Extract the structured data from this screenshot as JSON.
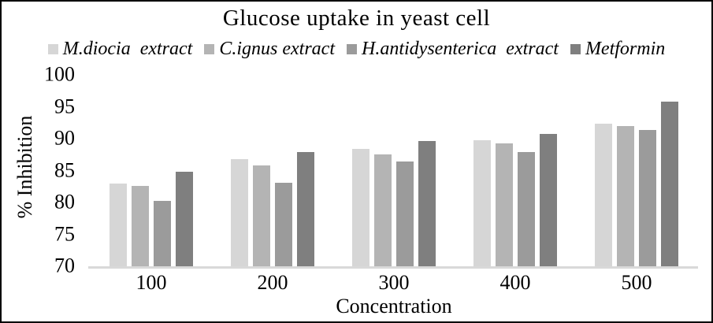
{
  "chart_data": {
    "type": "bar",
    "title": "Glucose uptake in yeast cell",
    "xlabel": "Concentration",
    "ylabel": "% Inhibition",
    "categories": [
      "100",
      "200",
      "300",
      "400",
      "500"
    ],
    "series": [
      {
        "name": "M.diocia  extract",
        "color": "#d6d6d6",
        "values": [
          83.0,
          86.8,
          88.4,
          89.8,
          92.4
        ]
      },
      {
        "name": "C.ignus extract",
        "color": "#b4b4b4",
        "values": [
          82.6,
          85.8,
          87.5,
          89.3,
          92.0
        ]
      },
      {
        "name": "H.antidysenterica  extract",
        "color": "#9b9b9b",
        "values": [
          80.3,
          83.1,
          86.4,
          87.9,
          91.3
        ]
      },
      {
        "name": "Metformin",
        "color": "#7f7f7f",
        "values": [
          84.8,
          87.9,
          89.6,
          90.7,
          95.8
        ]
      }
    ],
    "ylim": [
      70,
      100
    ],
    "yticks": [
      100,
      95,
      90,
      85,
      80,
      75,
      70
    ],
    "grid": false,
    "legend_position": "top",
    "axis_line_color": "#d9d9d9",
    "border_color": "#000000"
  }
}
